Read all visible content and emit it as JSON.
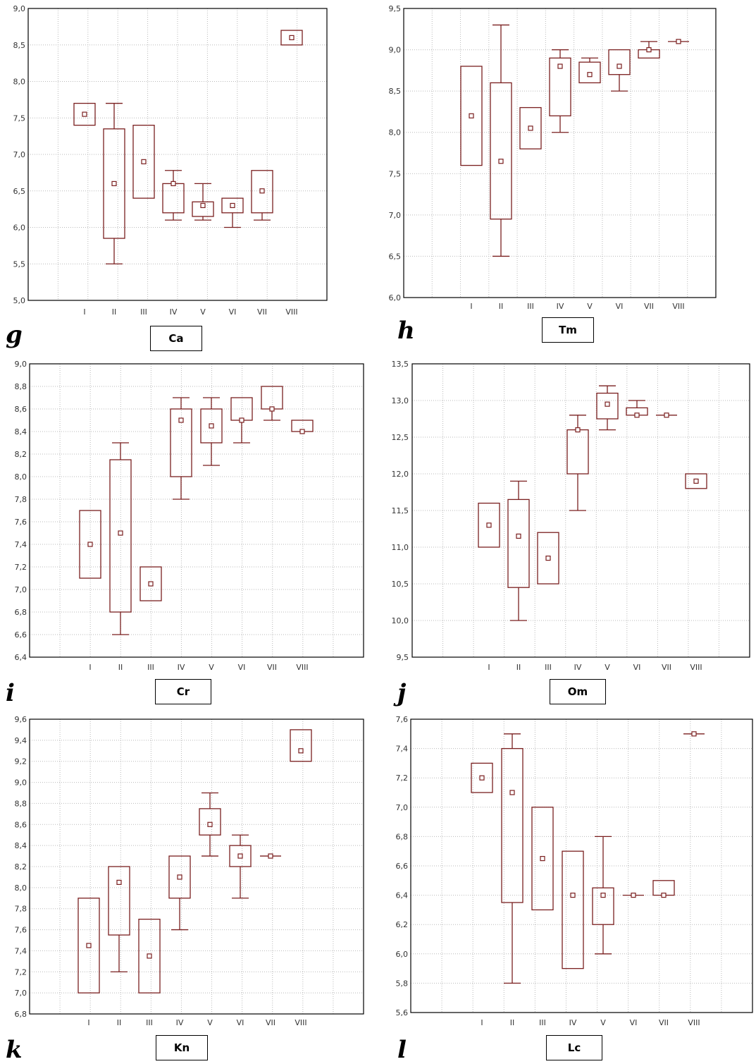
{
  "colors": {
    "box": "#7a1f1f",
    "grid": "#b9b9b9",
    "plot_bg": "#ffffff",
    "frame": "#000000",
    "tick_text": "#333333"
  },
  "chart_data": [
    {
      "type": "box",
      "panel_letter": "g",
      "label": "Ca",
      "categories": [
        "I",
        "II",
        "III",
        "IV",
        "V",
        "VI",
        "VII",
        "VIII"
      ],
      "ylim": [
        5.0,
        9.0
      ],
      "yticks": [
        "5,0",
        "5,5",
        "6,0",
        "6,5",
        "7,0",
        "7,5",
        "8,0",
        "8,5",
        "9,0"
      ],
      "grid": true,
      "boxes": [
        {
          "cat": "I",
          "median": 7.55,
          "q1": 7.4,
          "q3": 7.7,
          "min": null,
          "max": null
        },
        {
          "cat": "II",
          "median": 6.6,
          "q1": 5.85,
          "q3": 7.35,
          "min": 5.5,
          "max": 7.7
        },
        {
          "cat": "III",
          "median": 6.9,
          "q1": 6.4,
          "q3": 7.4,
          "min": null,
          "max": null
        },
        {
          "cat": "IV",
          "median": 6.6,
          "q1": 6.2,
          "q3": 6.6,
          "min": 6.1,
          "max": 6.78
        },
        {
          "cat": "V",
          "median": 6.3,
          "q1": 6.15,
          "q3": 6.35,
          "min": 6.1,
          "max": 6.6
        },
        {
          "cat": "VI",
          "median": 6.3,
          "q1": 6.2,
          "q3": 6.4,
          "min": 6.0,
          "max": null
        },
        {
          "cat": "VII",
          "median": 6.5,
          "q1": 6.2,
          "q3": 6.78,
          "min": 6.1,
          "max": null
        },
        {
          "cat": "VIII",
          "median": 8.6,
          "q1": 8.5,
          "q3": 8.7,
          "min": null,
          "max": null
        }
      ]
    },
    {
      "type": "box",
      "panel_letter": "h",
      "label": "Tm",
      "categories": [
        "I",
        "II",
        "III",
        "IV",
        "V",
        "VI",
        "VII",
        "VIII"
      ],
      "ylim": [
        6.0,
        9.5
      ],
      "yticks": [
        "6,0",
        "6,5",
        "7,0",
        "7,5",
        "8,0",
        "8,5",
        "9,0",
        "9,5"
      ],
      "grid": true,
      "boxes": [
        {
          "cat": "I",
          "median": 8.2,
          "q1": 7.6,
          "q3": 8.8,
          "min": null,
          "max": null
        },
        {
          "cat": "II",
          "median": 7.65,
          "q1": 6.95,
          "q3": 8.6,
          "min": 6.5,
          "max": 9.3
        },
        {
          "cat": "III",
          "median": 8.05,
          "q1": 7.8,
          "q3": 8.3,
          "min": null,
          "max": null
        },
        {
          "cat": "IV",
          "median": 8.8,
          "q1": 8.2,
          "q3": 8.9,
          "min": 8.0,
          "max": 9.0
        },
        {
          "cat": "V",
          "median": 8.7,
          "q1": 8.6,
          "q3": 8.85,
          "min": null,
          "max": 8.9
        },
        {
          "cat": "VI",
          "median": 8.8,
          "q1": 8.7,
          "q3": 9.0,
          "min": 8.5,
          "max": null
        },
        {
          "cat": "VII",
          "median": 9.0,
          "q1": 8.9,
          "q3": 9.0,
          "min": null,
          "max": 9.1
        },
        {
          "cat": "VIII",
          "median": 9.1,
          "q1": 9.1,
          "q3": 9.1,
          "min": null,
          "max": null
        }
      ]
    },
    {
      "type": "box",
      "panel_letter": "i",
      "label": "Cr",
      "categories": [
        "I",
        "II",
        "III",
        "IV",
        "V",
        "VI",
        "VII",
        "VIII"
      ],
      "ylim": [
        6.4,
        9.0
      ],
      "yticks": [
        "6,4",
        "6,6",
        "6,8",
        "7,0",
        "7,2",
        "7,4",
        "7,6",
        "7,8",
        "8,0",
        "8,2",
        "8,4",
        "8,6",
        "8,8",
        "9,0"
      ],
      "grid": true,
      "boxes": [
        {
          "cat": "I",
          "median": 7.4,
          "q1": 7.1,
          "q3": 7.7,
          "min": null,
          "max": null
        },
        {
          "cat": "II",
          "median": 7.5,
          "q1": 6.8,
          "q3": 8.15,
          "min": 6.6,
          "max": 8.3
        },
        {
          "cat": "III",
          "median": 7.05,
          "q1": 6.9,
          "q3": 7.2,
          "min": null,
          "max": null
        },
        {
          "cat": "IV",
          "median": 8.5,
          "q1": 8.0,
          "q3": 8.6,
          "min": 7.8,
          "max": 8.7
        },
        {
          "cat": "V",
          "median": 8.45,
          "q1": 8.3,
          "q3": 8.6,
          "min": 8.1,
          "max": 8.7
        },
        {
          "cat": "VI",
          "median": 8.5,
          "q1": 8.5,
          "q3": 8.7,
          "min": 8.3,
          "max": null
        },
        {
          "cat": "VII",
          "median": 8.6,
          "q1": 8.6,
          "q3": 8.8,
          "min": 8.5,
          "max": null
        },
        {
          "cat": "VIII",
          "median": 8.4,
          "q1": 8.4,
          "q3": 8.5,
          "min": null,
          "max": null
        }
      ]
    },
    {
      "type": "box",
      "panel_letter": "j",
      "label": "Om",
      "categories": [
        "I",
        "II",
        "III",
        "IV",
        "V",
        "VI",
        "VII",
        "VIII"
      ],
      "ylim": [
        9.5,
        13.5
      ],
      "yticks": [
        "9,5",
        "10,0",
        "10,5",
        "11,0",
        "11,5",
        "12,0",
        "12,5",
        "13,0",
        "13,5"
      ],
      "grid": true,
      "boxes": [
        {
          "cat": "I",
          "median": 11.3,
          "q1": 11.0,
          "q3": 11.6,
          "min": null,
          "max": null
        },
        {
          "cat": "II",
          "median": 11.15,
          "q1": 10.45,
          "q3": 11.65,
          "min": 10.0,
          "max": 11.9
        },
        {
          "cat": "III",
          "median": 10.85,
          "q1": 10.5,
          "q3": 11.2,
          "min": null,
          "max": null
        },
        {
          "cat": "IV",
          "median": 12.6,
          "q1": 12.0,
          "q3": 12.6,
          "min": 11.5,
          "max": 12.8
        },
        {
          "cat": "V",
          "median": 12.95,
          "q1": 12.75,
          "q3": 13.1,
          "min": 12.6,
          "max": 13.2
        },
        {
          "cat": "VI",
          "median": 12.8,
          "q1": 12.8,
          "q3": 12.9,
          "min": null,
          "max": 13.0
        },
        {
          "cat": "VII",
          "median": 12.8,
          "q1": 12.8,
          "q3": 12.8,
          "min": null,
          "max": null
        },
        {
          "cat": "VIII",
          "median": 11.9,
          "q1": 11.8,
          "q3": 12.0,
          "min": null,
          "max": null
        }
      ]
    },
    {
      "type": "box",
      "panel_letter": "k",
      "label": "Kn",
      "categories": [
        "I",
        "II",
        "III",
        "IV",
        "V",
        "VI",
        "VII",
        "VIII"
      ],
      "ylim": [
        6.8,
        9.6
      ],
      "yticks": [
        "6,8",
        "7,0",
        "7,2",
        "7,4",
        "7,6",
        "7,8",
        "8,0",
        "8,2",
        "8,4",
        "8,6",
        "8,8",
        "9,0",
        "9,2",
        "9,4",
        "9,6"
      ],
      "grid": true,
      "boxes": [
        {
          "cat": "I",
          "median": 7.45,
          "q1": 7.0,
          "q3": 7.9,
          "min": null,
          "max": null
        },
        {
          "cat": "II",
          "median": 8.05,
          "q1": 7.55,
          "q3": 8.2,
          "min": 7.2,
          "max": null
        },
        {
          "cat": "III",
          "median": 7.35,
          "q1": 7.0,
          "q3": 7.7,
          "min": null,
          "max": null
        },
        {
          "cat": "IV",
          "median": 8.1,
          "q1": 7.9,
          "q3": 8.3,
          "min": 7.6,
          "max": null
        },
        {
          "cat": "V",
          "median": 8.6,
          "q1": 8.5,
          "q3": 8.75,
          "min": 8.3,
          "max": 8.9
        },
        {
          "cat": "VI",
          "median": 8.3,
          "q1": 8.2,
          "q3": 8.4,
          "min": 7.9,
          "max": 8.5
        },
        {
          "cat": "VII",
          "median": 8.3,
          "q1": 8.3,
          "q3": 8.3,
          "min": null,
          "max": null
        },
        {
          "cat": "VIII",
          "median": 9.3,
          "q1": 9.2,
          "q3": 9.5,
          "min": null,
          "max": null
        }
      ]
    },
    {
      "type": "box",
      "panel_letter": "l",
      "label": "Lc",
      "categories": [
        "I",
        "II",
        "III",
        "IV",
        "V",
        "VI",
        "VII",
        "VIII"
      ],
      "ylim": [
        5.6,
        7.6
      ],
      "yticks": [
        "5,6",
        "5,8",
        "6,0",
        "6,2",
        "6,4",
        "6,6",
        "6,8",
        "7,0",
        "7,2",
        "7,4",
        "7,6"
      ],
      "grid": true,
      "boxes": [
        {
          "cat": "I",
          "median": 7.2,
          "q1": 7.1,
          "q3": 7.3,
          "min": null,
          "max": null
        },
        {
          "cat": "II",
          "median": 7.1,
          "q1": 6.35,
          "q3": 7.4,
          "min": 5.8,
          "max": 7.5
        },
        {
          "cat": "III",
          "median": 6.65,
          "q1": 6.3,
          "q3": 7.0,
          "min": null,
          "max": null
        },
        {
          "cat": "IV",
          "median": 6.4,
          "q1": 5.9,
          "q3": 6.7,
          "min": null,
          "max": null
        },
        {
          "cat": "V",
          "median": 6.4,
          "q1": 6.2,
          "q3": 6.45,
          "min": 6.0,
          "max": 6.8
        },
        {
          "cat": "VI",
          "median": 6.4,
          "q1": 6.4,
          "q3": 6.4,
          "min": null,
          "max": null
        },
        {
          "cat": "VII",
          "median": 6.4,
          "q1": 6.4,
          "q3": 6.5,
          "min": null,
          "max": null
        },
        {
          "cat": "VIII",
          "median": 7.5,
          "q1": 7.5,
          "q3": 7.5,
          "min": null,
          "max": null
        }
      ]
    }
  ]
}
